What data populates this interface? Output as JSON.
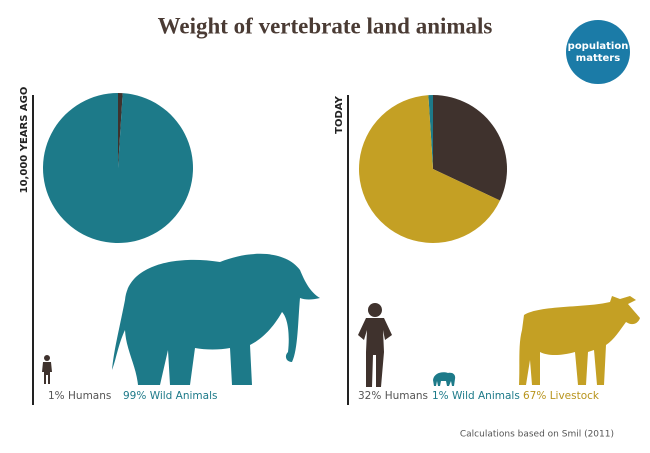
{
  "title": "Weight of vertebrate land animals",
  "logo": [
    "population",
    "matters"
  ],
  "source": "Calculations based on Smil (2011)",
  "chart_data": [
    {
      "type": "pie",
      "label": "10,000 YEARS AGO",
      "categories": [
        "Humans",
        "Wild Animals"
      ],
      "values": [
        1,
        99
      ],
      "value_labels": [
        "1%",
        "99%"
      ],
      "colors": [
        "#3f322d",
        "#1d7a89"
      ]
    },
    {
      "type": "pie",
      "label": "TODAY",
      "categories": [
        "Humans",
        "Wild Animals",
        "Livestock"
      ],
      "values": [
        32,
        1,
        67
      ],
      "value_labels": [
        "32%",
        "1%",
        "67%"
      ],
      "colors": [
        "#3f322d",
        "#1d7a89",
        "#c4a024"
      ]
    }
  ]
}
